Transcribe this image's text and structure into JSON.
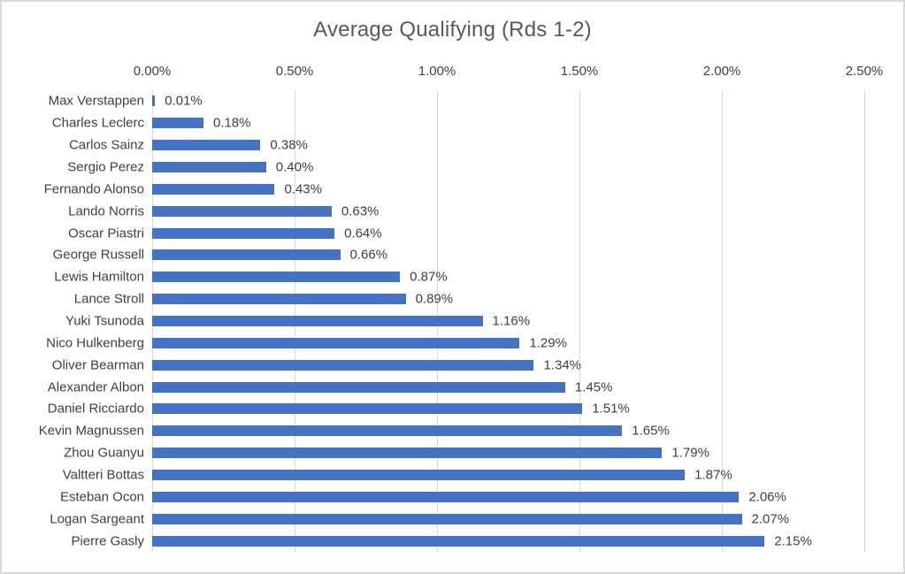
{
  "frame": {
    "background": "#FFFFFF",
    "border_color": "#D9D9D9"
  },
  "chart_data": {
    "type": "bar",
    "orientation": "horizontal",
    "title": "Average Qualifying (Rds 1-2)",
    "categories": [
      "Max Verstappen",
      "Charles Leclerc",
      "Carlos Sainz",
      "Sergio Perez",
      "Fernando Alonso",
      "Lando Norris",
      "Oscar Piastri",
      "George Russell",
      "Lewis Hamilton",
      "Lance Stroll",
      "Yuki Tsunoda",
      "Nico Hulkenberg",
      "Oliver Bearman",
      "Alexander Albon",
      "Daniel Ricciardo",
      "Kevin Magnussen",
      "Zhou Guanyu",
      "Valtteri Bottas",
      "Esteban Ocon",
      "Logan Sargeant",
      "Pierre Gasly"
    ],
    "values": [
      0.01,
      0.18,
      0.38,
      0.4,
      0.43,
      0.63,
      0.64,
      0.66,
      0.87,
      0.89,
      1.16,
      1.29,
      1.34,
      1.45,
      1.51,
      1.65,
      1.79,
      1.87,
      2.06,
      2.07,
      2.15
    ],
    "value_labels": [
      "0.01%",
      "0.18%",
      "0.38%",
      "0.40%",
      "0.43%",
      "0.63%",
      "0.64%",
      "0.66%",
      "0.87%",
      "0.89%",
      "1.16%",
      "1.29%",
      "1.34%",
      "1.45%",
      "1.51%",
      "1.65%",
      "1.79%",
      "1.87%",
      "2.06%",
      "2.07%",
      "2.15%"
    ],
    "xlabel": "",
    "ylabel": "",
    "xlim": [
      0,
      2.5
    ],
    "x_tick_values": [
      0.0,
      0.5,
      1.0,
      1.5,
      2.0,
      2.5
    ],
    "x_tick_labels": [
      "0.00%",
      "0.50%",
      "1.00%",
      "1.50%",
      "2.00%",
      "2.50%"
    ],
    "axis_position": "top",
    "grid": true,
    "legend_position": "none",
    "bar_color": "#4472C4",
    "title_color": "#595959",
    "text_color": "#404040",
    "gridline_color": "#D9D9D9"
  }
}
